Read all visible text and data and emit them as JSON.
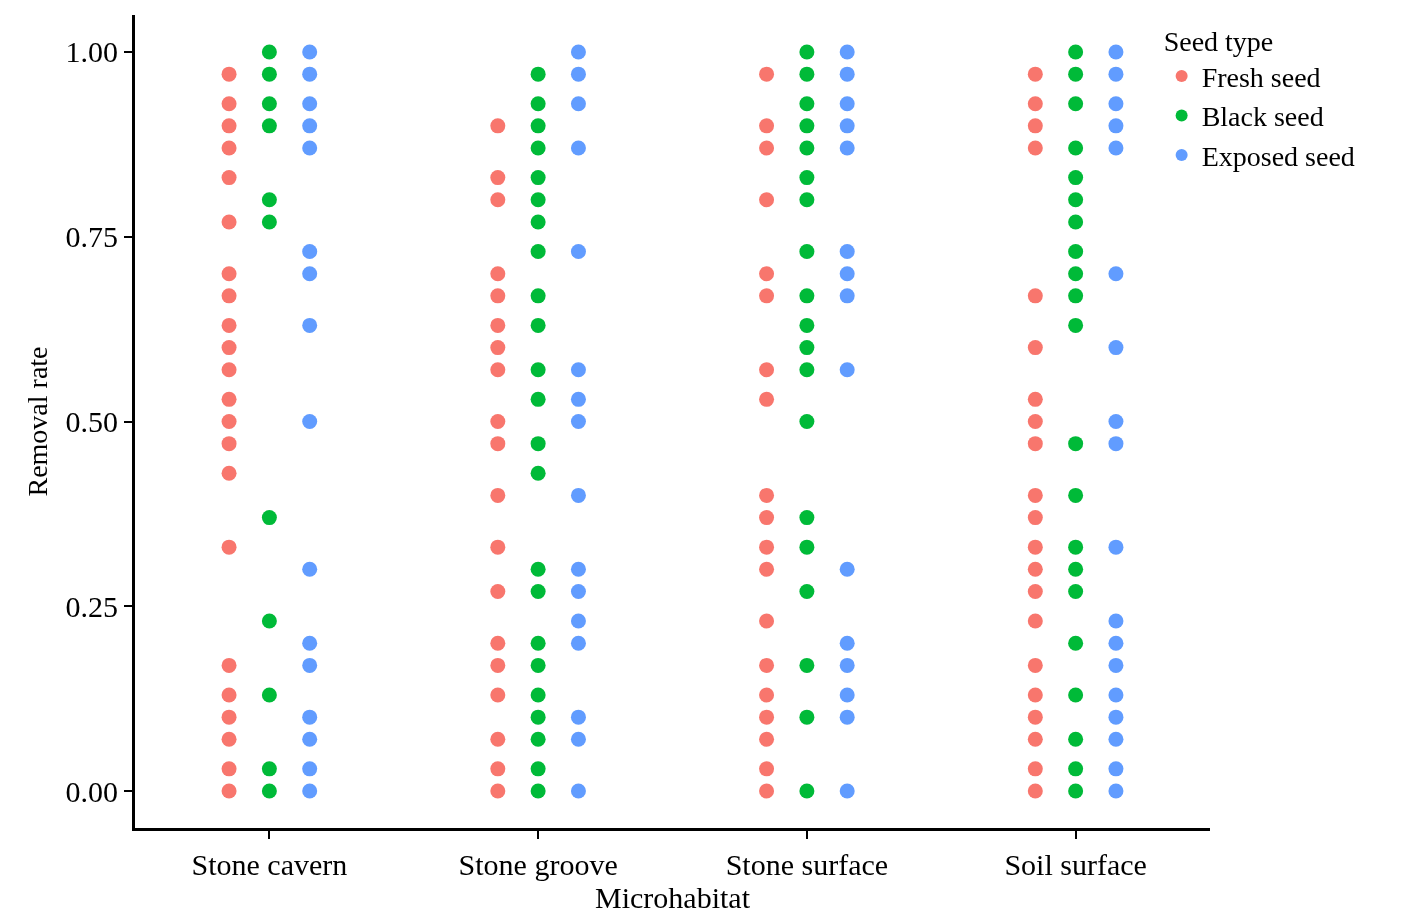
{
  "chart_data": {
    "type": "scatter",
    "xlabel": "Microhabitat",
    "ylabel": "Removal rate",
    "legend_title": "Seed type",
    "legend": "top right",
    "marker": "circle",
    "categories": [
      "Stone cavern",
      "Stone groove",
      "Stone surface",
      "Soil surface"
    ],
    "ylim": [
      -0.05,
      1.05
    ],
    "yticks": [
      {
        "value": 0,
        "label": "0.00"
      },
      {
        "value": 0.25,
        "label": "0.25"
      },
      {
        "value": 0.5,
        "label": "0.50"
      },
      {
        "value": 0.75,
        "label": "0.75"
      },
      {
        "value": 1,
        "label": "1.00"
      }
    ],
    "series": [
      {
        "name": "Fresh seed",
        "color": "#f8766d",
        "x": [
          "Stone cavern",
          "Stone cavern",
          "Stone cavern",
          "Stone cavern",
          "Stone cavern",
          "Stone cavern",
          "Stone cavern",
          "Stone cavern",
          "Stone cavern",
          "Stone cavern",
          "Stone cavern",
          "Stone cavern",
          "Stone cavern",
          "Stone cavern",
          "Stone cavern",
          "Stone cavern",
          "Stone cavern",
          "Stone cavern",
          "Stone cavern",
          "Stone cavern",
          "Stone cavern",
          "Stone cavern",
          "Stone groove",
          "Stone groove",
          "Stone groove",
          "Stone groove",
          "Stone groove",
          "Stone groove",
          "Stone groove",
          "Stone groove",
          "Stone groove",
          "Stone groove",
          "Stone groove",
          "Stone groove",
          "Stone groove",
          "Stone groove",
          "Stone groove",
          "Stone groove",
          "Stone groove",
          "Stone groove",
          "Stone groove",
          "Stone surface",
          "Stone surface",
          "Stone surface",
          "Stone surface",
          "Stone surface",
          "Stone surface",
          "Stone surface",
          "Stone surface",
          "Stone surface",
          "Stone surface",
          "Stone surface",
          "Stone surface",
          "Stone surface",
          "Stone surface",
          "Stone surface",
          "Stone surface",
          "Stone surface",
          "Stone surface",
          "Stone surface",
          "Soil surface",
          "Soil surface",
          "Soil surface",
          "Soil surface",
          "Soil surface",
          "Soil surface",
          "Soil surface",
          "Soil surface",
          "Soil surface",
          "Soil surface",
          "Soil surface",
          "Soil surface",
          "Soil surface",
          "Soil surface",
          "Soil surface",
          "Soil surface",
          "Soil surface",
          "Soil surface",
          "Soil surface",
          "Soil surface",
          "Soil surface"
        ],
        "values": [
          0.97,
          0.93,
          0.9,
          0.87,
          0.83,
          0.77,
          0.7,
          0.67,
          0.63,
          0.6,
          0.57,
          0.53,
          0.5,
          0.47,
          0.43,
          0.33,
          0.17,
          0.13,
          0.1,
          0.07,
          0.03,
          0,
          0.9,
          0.83,
          0.8,
          0.7,
          0.67,
          0.63,
          0.6,
          0.57,
          0.5,
          0.47,
          0.4,
          0.33,
          0.27,
          0.2,
          0.17,
          0.13,
          0.07,
          0.03,
          0,
          0.97,
          0.9,
          0.87,
          0.8,
          0.7,
          0.67,
          0.57,
          0.53,
          0.4,
          0.37,
          0.33,
          0.3,
          0.23,
          0.17,
          0.13,
          0.1,
          0.07,
          0.03,
          0,
          0.97,
          0.93,
          0.9,
          0.87,
          0.67,
          0.6,
          0.53,
          0.5,
          0.47,
          0.4,
          0.37,
          0.33,
          0.3,
          0.27,
          0.23,
          0.17,
          0.13,
          0.1,
          0.07,
          0.03,
          0
        ]
      },
      {
        "name": "Black seed",
        "color": "#00ba38",
        "x": [
          "Stone cavern",
          "Stone cavern",
          "Stone cavern",
          "Stone cavern",
          "Stone cavern",
          "Stone cavern",
          "Stone cavern",
          "Stone cavern",
          "Stone cavern",
          "Stone cavern",
          "Stone cavern",
          "Stone groove",
          "Stone groove",
          "Stone groove",
          "Stone groove",
          "Stone groove",
          "Stone groove",
          "Stone groove",
          "Stone groove",
          "Stone groove",
          "Stone groove",
          "Stone groove",
          "Stone groove",
          "Stone groove",
          "Stone groove",
          "Stone groove",
          "Stone groove",
          "Stone groove",
          "Stone groove",
          "Stone groove",
          "Stone groove",
          "Stone groove",
          "Stone groove",
          "Stone groove",
          "Stone surface",
          "Stone surface",
          "Stone surface",
          "Stone surface",
          "Stone surface",
          "Stone surface",
          "Stone surface",
          "Stone surface",
          "Stone surface",
          "Stone surface",
          "Stone surface",
          "Stone surface",
          "Stone surface",
          "Stone surface",
          "Stone surface",
          "Stone surface",
          "Stone surface",
          "Stone surface",
          "Stone surface",
          "Soil surface",
          "Soil surface",
          "Soil surface",
          "Soil surface",
          "Soil surface",
          "Soil surface",
          "Soil surface",
          "Soil surface",
          "Soil surface",
          "Soil surface",
          "Soil surface",
          "Soil surface",
          "Soil surface",
          "Soil surface",
          "Soil surface",
          "Soil surface",
          "Soil surface",
          "Soil surface",
          "Soil surface",
          "Soil surface",
          "Soil surface"
        ],
        "values": [
          1,
          0.97,
          0.93,
          0.9,
          0.8,
          0.77,
          0.37,
          0.23,
          0.13,
          0.03,
          0,
          0.97,
          0.93,
          0.9,
          0.87,
          0.83,
          0.8,
          0.77,
          0.73,
          0.67,
          0.63,
          0.57,
          0.53,
          0.47,
          0.43,
          0.3,
          0.27,
          0.2,
          0.17,
          0.13,
          0.1,
          0.07,
          0.03,
          0,
          1,
          0.97,
          0.93,
          0.9,
          0.87,
          0.83,
          0.8,
          0.73,
          0.67,
          0.63,
          0.6,
          0.57,
          0.5,
          0.37,
          0.33,
          0.27,
          0.17,
          0.1,
          0,
          1,
          0.97,
          0.93,
          0.87,
          0.83,
          0.8,
          0.77,
          0.73,
          0.7,
          0.67,
          0.63,
          0.47,
          0.4,
          0.33,
          0.3,
          0.27,
          0.2,
          0.13,
          0.07,
          0.03,
          0
        ]
      },
      {
        "name": "Exposed seed",
        "color": "#619cff",
        "x": [
          "Stone cavern",
          "Stone cavern",
          "Stone cavern",
          "Stone cavern",
          "Stone cavern",
          "Stone cavern",
          "Stone cavern",
          "Stone cavern",
          "Stone cavern",
          "Stone cavern",
          "Stone cavern",
          "Stone cavern",
          "Stone cavern",
          "Stone cavern",
          "Stone cavern",
          "Stone cavern",
          "Stone groove",
          "Stone groove",
          "Stone groove",
          "Stone groove",
          "Stone groove",
          "Stone groove",
          "Stone groove",
          "Stone groove",
          "Stone groove",
          "Stone groove",
          "Stone groove",
          "Stone groove",
          "Stone groove",
          "Stone groove",
          "Stone groove",
          "Stone groove",
          "Stone surface",
          "Stone surface",
          "Stone surface",
          "Stone surface",
          "Stone surface",
          "Stone surface",
          "Stone surface",
          "Stone surface",
          "Stone surface",
          "Stone surface",
          "Stone surface",
          "Stone surface",
          "Stone surface",
          "Stone surface",
          "Stone surface",
          "Soil surface",
          "Soil surface",
          "Soil surface",
          "Soil surface",
          "Soil surface",
          "Soil surface",
          "Soil surface",
          "Soil surface",
          "Soil surface",
          "Soil surface",
          "Soil surface",
          "Soil surface",
          "Soil surface",
          "Soil surface",
          "Soil surface",
          "Soil surface",
          "Soil surface",
          "Soil surface"
        ],
        "values": [
          1,
          0.97,
          0.93,
          0.9,
          0.87,
          0.73,
          0.7,
          0.63,
          0.5,
          0.3,
          0.2,
          0.17,
          0.1,
          0.07,
          0.03,
          0,
          1,
          0.97,
          0.93,
          0.87,
          0.73,
          0.57,
          0.53,
          0.5,
          0.4,
          0.3,
          0.27,
          0.23,
          0.2,
          0.1,
          0.07,
          0,
          1,
          0.97,
          0.93,
          0.9,
          0.87,
          0.73,
          0.7,
          0.67,
          0.57,
          0.3,
          0.2,
          0.17,
          0.13,
          0.1,
          0,
          1,
          0.97,
          0.93,
          0.9,
          0.87,
          0.7,
          0.6,
          0.5,
          0.47,
          0.33,
          0.23,
          0.2,
          0.17,
          0.13,
          0.1,
          0.07,
          0.03,
          0
        ]
      }
    ]
  }
}
